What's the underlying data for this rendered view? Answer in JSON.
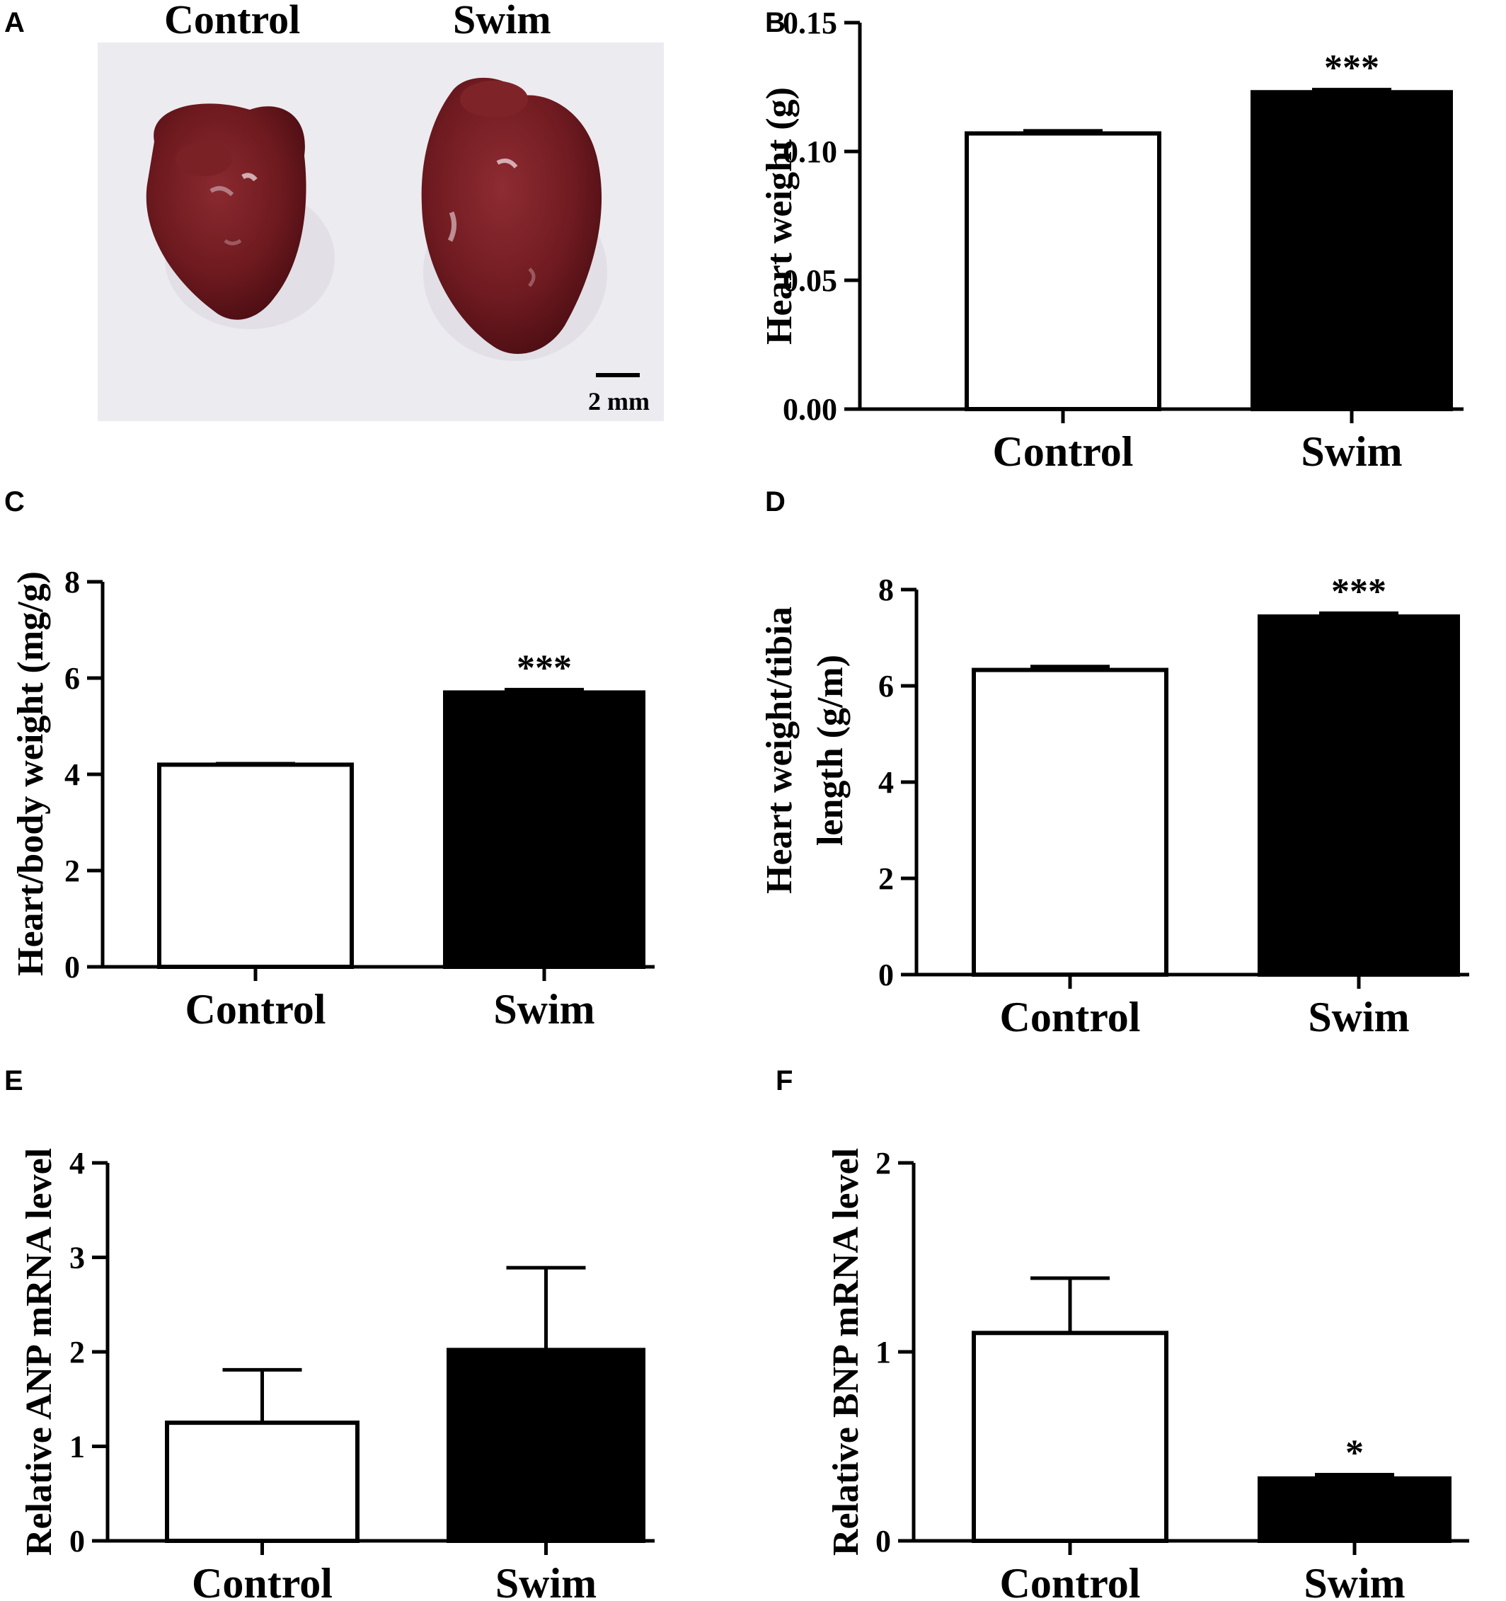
{
  "panel_a": {
    "letter": "A",
    "label_control": "Control",
    "label_swim": "Swim",
    "scale_bar_label": "2 mm",
    "tissue_color": "#6e1a1f",
    "background_color": "#ecebf0"
  },
  "chart_data": [
    {
      "panel": "B",
      "type": "bar",
      "categories": [
        "Control",
        "Swim"
      ],
      "values": [
        0.107,
        0.123
      ],
      "errors": [
        0.001,
        0.001
      ],
      "fills": [
        "#ffffff",
        "#000000"
      ],
      "significance": [
        "",
        "***"
      ],
      "ylabel": [
        "Heart weight (g)"
      ],
      "ylim": [
        0,
        0.15
      ],
      "yticks": [
        0,
        0.05,
        0.1,
        0.15
      ],
      "ytick_labels": [
        "0.00",
        "0.05",
        "0.10",
        "0.15"
      ],
      "grid": false
    },
    {
      "panel": "C",
      "type": "bar",
      "categories": [
        "Control",
        "Swim"
      ],
      "values": [
        4.2,
        5.7
      ],
      "errors": [
        0.02,
        0.06
      ],
      "fills": [
        "#ffffff",
        "#000000"
      ],
      "significance": [
        "",
        "***"
      ],
      "ylabel": [
        "Heart/body weight (mg/g)"
      ],
      "ylim": [
        0,
        8
      ],
      "yticks": [
        0,
        2,
        4,
        6,
        8
      ],
      "ytick_labels": [
        "0",
        "2",
        "4",
        "6",
        "8"
      ],
      "grid": false
    },
    {
      "panel": "D",
      "type": "bar",
      "categories": [
        "Control",
        "Swim"
      ],
      "values": [
        6.33,
        7.44
      ],
      "errors": [
        0.07,
        0.07
      ],
      "fills": [
        "#ffffff",
        "#000000"
      ],
      "significance": [
        "",
        "***"
      ],
      "ylabel": [
        "Heart weight/tibia",
        "length (g/m)"
      ],
      "ylim": [
        0,
        8
      ],
      "yticks": [
        0,
        2,
        4,
        6,
        8
      ],
      "ytick_labels": [
        "0",
        "2",
        "4",
        "6",
        "8"
      ],
      "grid": false
    },
    {
      "panel": "E",
      "type": "bar",
      "categories": [
        "Control",
        "Swim"
      ],
      "values": [
        1.25,
        2.02
      ],
      "errors": [
        0.56,
        0.87
      ],
      "fills": [
        "#ffffff",
        "#000000"
      ],
      "significance": [
        "",
        ""
      ],
      "ylabel": [
        "Relative ANP mRNA level"
      ],
      "ylim": [
        0,
        4
      ],
      "yticks": [
        0,
        1,
        2,
        3,
        4
      ],
      "ytick_labels": [
        "0",
        "1",
        "2",
        "3",
        "4"
      ],
      "grid": false
    },
    {
      "panel": "F",
      "type": "bar",
      "categories": [
        "Control",
        "Swim"
      ],
      "values": [
        1.1,
        0.33
      ],
      "errors": [
        0.29,
        0.02
      ],
      "fills": [
        "#ffffff",
        "#000000"
      ],
      "significance": [
        "",
        "*"
      ],
      "ylabel": [
        "Relative  BNP mRNA level"
      ],
      "ylim": [
        0,
        2
      ],
      "yticks": [
        0,
        1,
        2
      ],
      "ytick_labels": [
        "0",
        "1",
        "2"
      ],
      "grid": false
    }
  ]
}
